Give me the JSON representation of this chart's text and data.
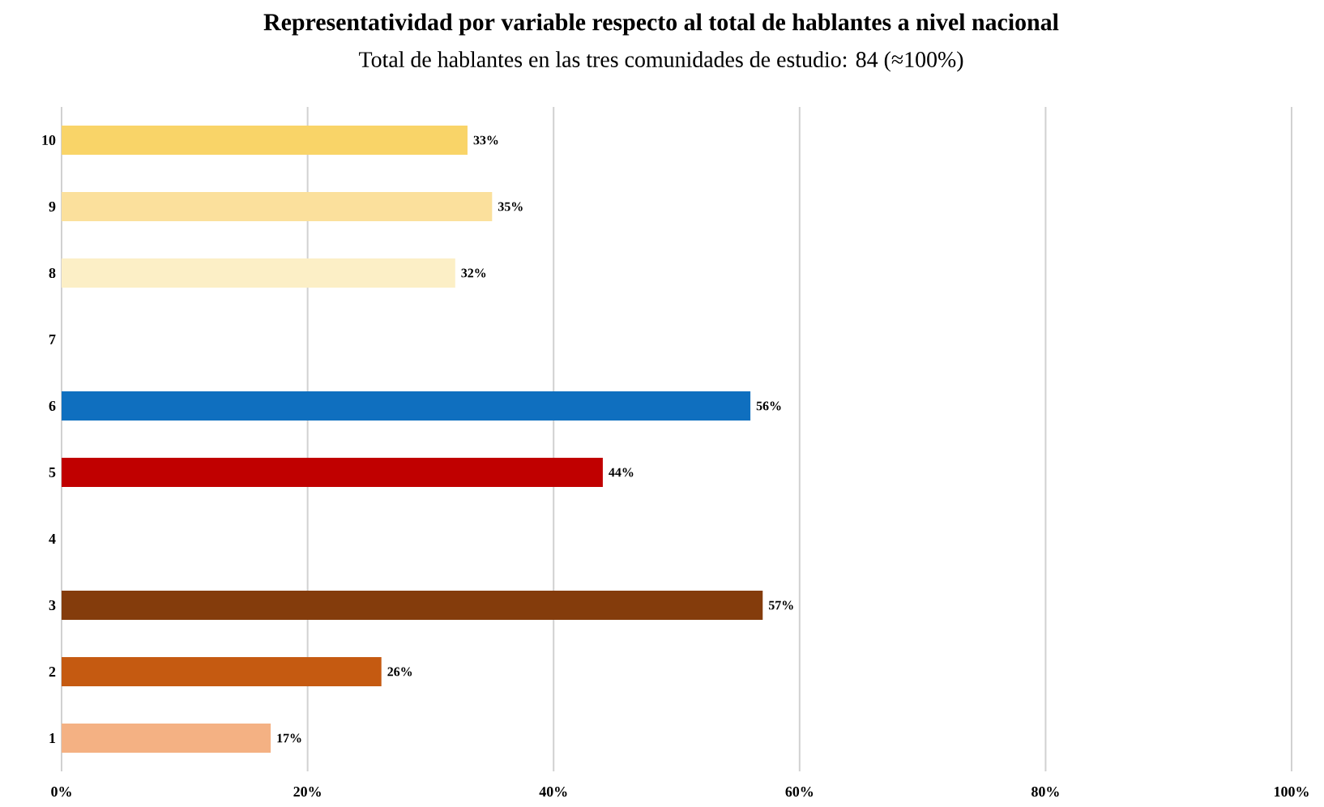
{
  "chart_data": {
    "type": "bar",
    "orientation": "horizontal",
    "title": "Representatividad por variable respecto al total de hablantes a nivel nacional",
    "subtitle": "Total de hablantes en las tres comunidades de estudio: 84 (≈100%)",
    "categories": [
      "10",
      "9",
      "8",
      "7",
      "6",
      "5",
      "4",
      "3",
      "2",
      "1"
    ],
    "values": [
      33,
      35,
      32,
      null,
      56,
      44,
      null,
      57,
      26,
      17
    ],
    "value_labels": [
      "33%",
      "35%",
      "32%",
      null,
      "56%",
      "44%",
      null,
      "57%",
      "26%",
      "17%"
    ],
    "colors": [
      "#f9d468",
      "#fbe09c",
      "#fcefc6",
      null,
      "#0f6fbf",
      "#c00000",
      null,
      "#843c0c",
      "#c55a11",
      "#f4b183"
    ],
    "xlim": [
      0,
      100
    ],
    "xticks": [
      {
        "value": 0,
        "label": "0%"
      },
      {
        "value": 20,
        "label": "20%"
      },
      {
        "value": 40,
        "label": "40%"
      },
      {
        "value": 60,
        "label": "60%"
      },
      {
        "value": 80,
        "label": "80%"
      },
      {
        "value": 100,
        "label": "100%"
      }
    ],
    "grid": "x"
  }
}
